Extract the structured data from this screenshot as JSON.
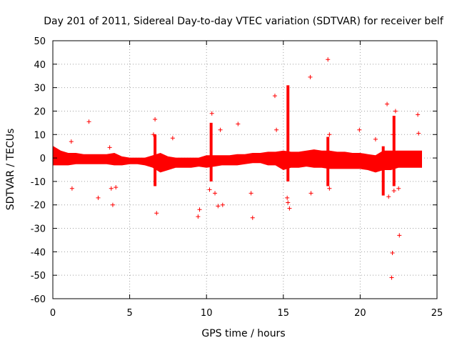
{
  "chart_data": {
    "type": "scatter",
    "title": "Day 201 of 2011, Sidereal Day-to-day VTEC variation (SDTVAR) for receiver belf",
    "xlabel": "GPS time / hours",
    "ylabel": "SDTVAR / TECUs",
    "xlim": [
      0,
      25
    ],
    "ylim": [
      -60,
      50
    ],
    "x_ticks": [
      0,
      5,
      10,
      15,
      20,
      25
    ],
    "y_ticks": [
      -60,
      -50,
      -40,
      -30,
      -20,
      -10,
      0,
      10,
      20,
      30,
      40,
      50
    ],
    "grid": true,
    "marker": "plus",
    "color": "#ff0000",
    "band": {
      "x": [
        0,
        0.5,
        1,
        1.5,
        2,
        2.5,
        3,
        3.5,
        4,
        4.5,
        5,
        5.5,
        6,
        6.5,
        7,
        7.5,
        8,
        8.5,
        9,
        9.5,
        10,
        10.5,
        11,
        11.5,
        12,
        12.5,
        13,
        13.5,
        14,
        14.5,
        15,
        15.5,
        16,
        16.5,
        17,
        17.5,
        18,
        18.5,
        19,
        19.5,
        20,
        20.5,
        21,
        21.5,
        22,
        22.5,
        23,
        23.5,
        24
      ],
      "upper": [
        5,
        3,
        2,
        2,
        1.5,
        1.5,
        1.5,
        1.5,
        2,
        0.5,
        0,
        0,
        0,
        1,
        2,
        0.5,
        0,
        0,
        0,
        0,
        1,
        1,
        1,
        1,
        1.5,
        1.5,
        2,
        2,
        2.5,
        2.5,
        3,
        2.5,
        2.5,
        3,
        3.5,
        3,
        3,
        2.5,
        2.5,
        2,
        2,
        1.5,
        1,
        3,
        3,
        3,
        3,
        3,
        3
      ],
      "lower": [
        -3,
        -3,
        -3,
        -2.5,
        -2.5,
        -2.5,
        -2.5,
        -2.5,
        -3,
        -3,
        -2.5,
        -2.5,
        -3,
        -4,
        -6,
        -5,
        -4,
        -4,
        -4,
        -3.5,
        -4,
        -3.5,
        -3,
        -3,
        -3,
        -2.5,
        -2,
        -2,
        -3,
        -3,
        -5,
        -4,
        -4,
        -3.5,
        -4,
        -4,
        -4.5,
        -4.5,
        -4.5,
        -4.5,
        -4.5,
        -5,
        -6,
        -5,
        -5,
        -4,
        -4,
        -4,
        -4
      ]
    },
    "spikes": [
      {
        "x": 6.65,
        "low": -12,
        "high": 10
      },
      {
        "x": 10.3,
        "low": -10,
        "high": 15
      },
      {
        "x": 15.3,
        "low": -10,
        "high": 31
      },
      {
        "x": 17.9,
        "low": -12,
        "high": 9
      },
      {
        "x": 21.5,
        "low": -16,
        "high": 5
      },
      {
        "x": 22.2,
        "low": -12,
        "high": 18
      }
    ],
    "outliers": [
      {
        "x": 1.2,
        "y": 7
      },
      {
        "x": 1.25,
        "y": -13
      },
      {
        "x": 2.35,
        "y": 15.5
      },
      {
        "x": 2.95,
        "y": -17
      },
      {
        "x": 3.7,
        "y": 4.5
      },
      {
        "x": 3.8,
        "y": -13
      },
      {
        "x": 3.9,
        "y": -20
      },
      {
        "x": 4.1,
        "y": -12.5
      },
      {
        "x": 6.55,
        "y": 10
      },
      {
        "x": 6.65,
        "y": 16.5
      },
      {
        "x": 6.75,
        "y": -23.5
      },
      {
        "x": 7.8,
        "y": 8.5
      },
      {
        "x": 9.45,
        "y": -25
      },
      {
        "x": 9.55,
        "y": -22
      },
      {
        "x": 10.2,
        "y": -13.5
      },
      {
        "x": 10.35,
        "y": 19
      },
      {
        "x": 10.55,
        "y": -15
      },
      {
        "x": 10.75,
        "y": -20.5
      },
      {
        "x": 10.9,
        "y": 12
      },
      {
        "x": 11.05,
        "y": -20
      },
      {
        "x": 12.05,
        "y": 14.5
      },
      {
        "x": 12.9,
        "y": -15
      },
      {
        "x": 13.0,
        "y": -25.5
      },
      {
        "x": 14.45,
        "y": 26.5
      },
      {
        "x": 14.55,
        "y": 12
      },
      {
        "x": 15.25,
        "y": -17
      },
      {
        "x": 15.3,
        "y": -19
      },
      {
        "x": 15.4,
        "y": -21.5
      },
      {
        "x": 16.75,
        "y": 34.5
      },
      {
        "x": 16.8,
        "y": -15
      },
      {
        "x": 17.9,
        "y": 42
      },
      {
        "x": 18.0,
        "y": 10
      },
      {
        "x": 18.0,
        "y": -13
      },
      {
        "x": 19.95,
        "y": 12
      },
      {
        "x": 21.0,
        "y": 8
      },
      {
        "x": 21.75,
        "y": 23
      },
      {
        "x": 21.85,
        "y": -16.5
      },
      {
        "x": 22.05,
        "y": -51
      },
      {
        "x": 22.1,
        "y": -40.5
      },
      {
        "x": 22.15,
        "y": 10
      },
      {
        "x": 22.2,
        "y": -14
      },
      {
        "x": 22.3,
        "y": 20
      },
      {
        "x": 22.5,
        "y": -13
      },
      {
        "x": 22.55,
        "y": -33
      },
      {
        "x": 23.75,
        "y": 18.5
      },
      {
        "x": 23.8,
        "y": 10.5
      }
    ]
  }
}
